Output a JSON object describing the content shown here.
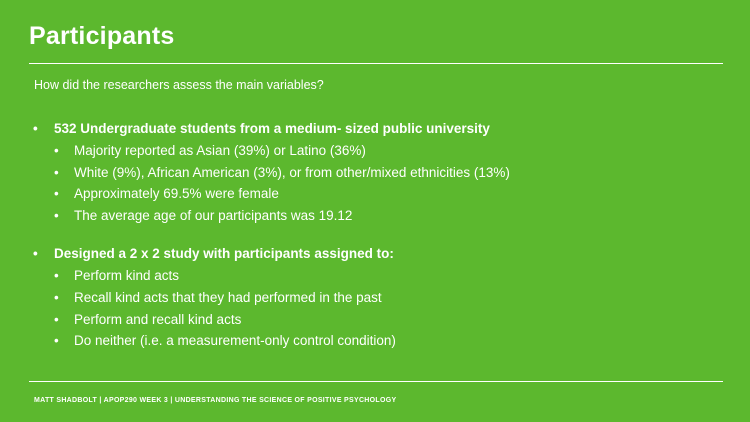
{
  "slide": {
    "title": "Participants",
    "question": "How did the researchers assess the main variables?",
    "sections": [
      {
        "heading": "532 Undergraduate students from a medium- sized public university",
        "items": [
          "Majority reported as Asian (39%) or Latino (36%)",
          "White (9%), African American (3%), or from other/mixed ethnicities (13%)",
          "Approximately 69.5% were female",
          "The average age of our participants was 19.12"
        ]
      },
      {
        "heading": "Designed a 2 x 2 study with participants assigned to:",
        "items": [
          "Perform kind acts",
          "Recall kind acts that they had performed in the past",
          "Perform and recall kind acts",
          "Do neither (i.e. a measurement-only control condition)"
        ]
      }
    ],
    "footer": "MATT SHADBOLT | APOP290 WEEK 3 | UNDERSTANDING THE SCIENCE OF POSITIVE PSYCHOLOGY",
    "bullet_glyph": "•",
    "colors": {
      "background": "#5cb82e",
      "text": "#ffffff"
    }
  }
}
